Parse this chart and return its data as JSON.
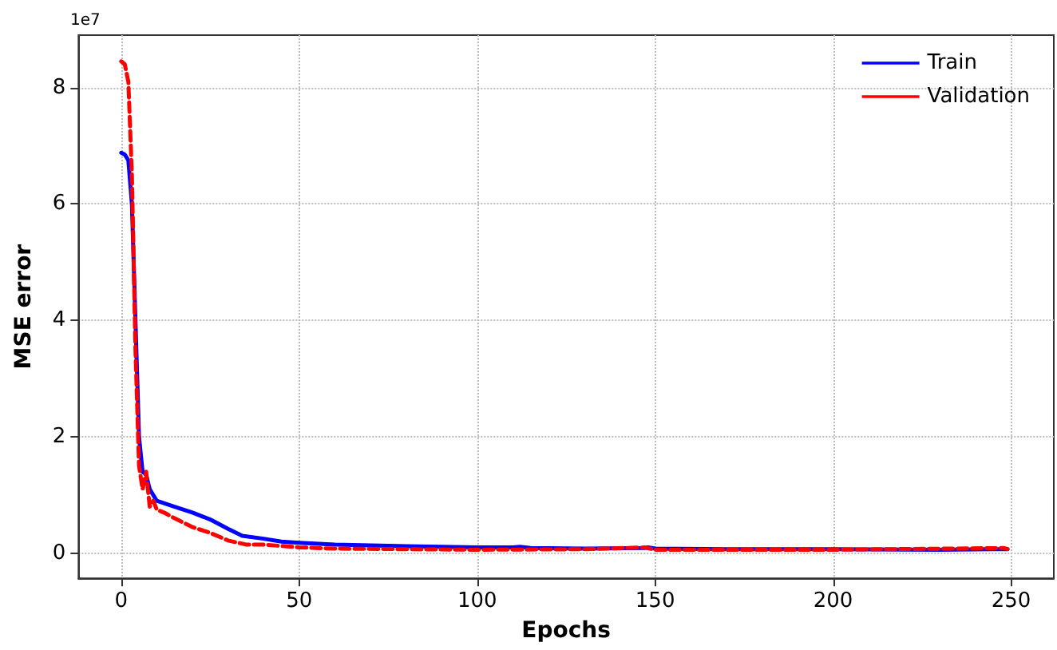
{
  "chart_data": {
    "type": "line",
    "xlabel": "Epochs",
    "ylabel": "MSE error",
    "annotations": [
      "1e7"
    ],
    "xlim": [
      -12,
      262
    ],
    "xticks": [
      0,
      50,
      100,
      150,
      200,
      250
    ],
    "ylim": [
      -0.43,
      8.9
    ],
    "yticks": [
      0,
      2,
      4,
      6,
      8
    ],
    "grid": true,
    "legend": "top right",
    "marker": "none",
    "series": [
      {
        "name": "Train",
        "color": "#0000ff",
        "line_style": "solid",
        "x": [
          0,
          1,
          2,
          3,
          4,
          5,
          6,
          7,
          8,
          10,
          15,
          20,
          25,
          30,
          34,
          40,
          45,
          50,
          60,
          80,
          100,
          110,
          112,
          115,
          130,
          147,
          148,
          150,
          170,
          200,
          230,
          245,
          249
        ],
        "values": [
          6.88,
          6.85,
          6.75,
          6.0,
          4.0,
          2.0,
          1.4,
          1.35,
          1.1,
          0.9,
          0.8,
          0.7,
          0.58,
          0.42,
          0.3,
          0.25,
          0.2,
          0.18,
          0.15,
          0.12,
          0.1,
          0.1,
          0.11,
          0.09,
          0.08,
          0.09,
          0.1,
          0.08,
          0.07,
          0.07,
          0.06,
          0.07,
          0.07
        ]
      },
      {
        "name": "Validation",
        "color": "#ff0000",
        "line_style": "dashed",
        "x": [
          0,
          1,
          2,
          3,
          4,
          5,
          6,
          7,
          8,
          9,
          10,
          12,
          15,
          20,
          25,
          30,
          35,
          40,
          50,
          60,
          100,
          130,
          147,
          150,
          200,
          248,
          249
        ],
        "values": [
          8.45,
          8.4,
          8.1,
          6.5,
          3.5,
          1.5,
          1.1,
          1.4,
          0.8,
          0.9,
          0.75,
          0.7,
          0.6,
          0.45,
          0.35,
          0.22,
          0.15,
          0.15,
          0.1,
          0.08,
          0.06,
          0.07,
          0.1,
          0.06,
          0.06,
          0.09,
          0.07
        ]
      }
    ]
  }
}
